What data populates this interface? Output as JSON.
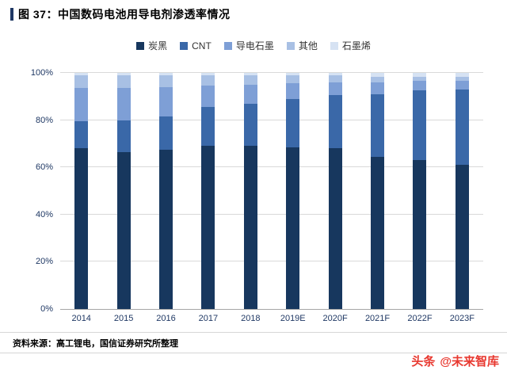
{
  "header": {
    "title": "图 37：中国数码电池用导电剂渗透率情况",
    "accent_color": "#1F3864"
  },
  "footer": {
    "source": "资料来源：高工锂电，国信证券研究所整理",
    "watermark_prefix": "头条",
    "watermark_handle": "@未来智库",
    "watermark_color": "#E8382F"
  },
  "chart_data": {
    "type": "bar",
    "stacked": true,
    "percent": true,
    "title": "",
    "xlabel": "",
    "ylabel": "",
    "ylim": [
      0,
      100
    ],
    "ytick_values": [
      0,
      20,
      40,
      60,
      80,
      100
    ],
    "ytick_labels": [
      "0%",
      "20%",
      "40%",
      "60%",
      "80%",
      "100%"
    ],
    "grid": true,
    "legend_position": "top",
    "categories": [
      "2014",
      "2015",
      "2016",
      "2017",
      "2018",
      "2019E",
      "2020F",
      "2021F",
      "2022F",
      "2023F"
    ],
    "series": [
      {
        "name": "炭黑",
        "color": "#17375E",
        "values": [
          68,
          66.5,
          67.5,
          69,
          69,
          68.5,
          68,
          64.5,
          63,
          61
        ]
      },
      {
        "name": "CNT",
        "color": "#3A68A8",
        "values": [
          11.5,
          13.5,
          14,
          16.5,
          18,
          20.5,
          22.5,
          26.5,
          29.5,
          32
        ]
      },
      {
        "name": "导电石墨",
        "color": "#7E9FD6",
        "values": [
          14,
          13.5,
          12.5,
          9,
          8,
          6.5,
          5.5,
          5,
          4,
          3.5
        ]
      },
      {
        "name": "其他",
        "color": "#A8C0E4",
        "values": [
          5.5,
          5.5,
          5,
          4.5,
          4,
          3.5,
          3,
          2.5,
          2,
          2
        ]
      },
      {
        "name": "石墨烯",
        "color": "#D6E2F3",
        "values": [
          1,
          1,
          1,
          1,
          1,
          1,
          1,
          1.5,
          1.5,
          1.5
        ]
      }
    ]
  }
}
